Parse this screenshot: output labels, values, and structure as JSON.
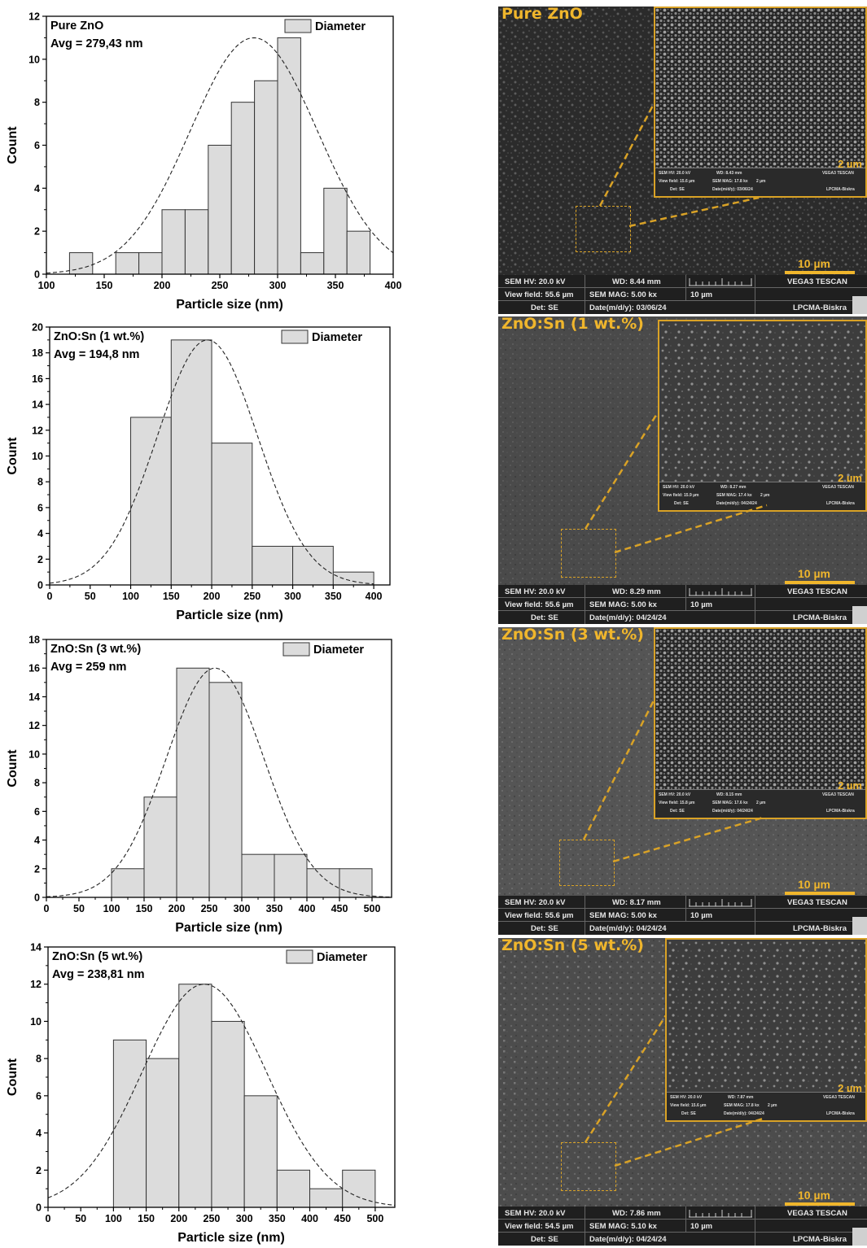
{
  "charts": [
    {
      "type": "bar",
      "sample_label": "Pure ZnO",
      "avg_label": "Avg = 279,43 nm",
      "legend_label": "Diameter",
      "xlabel": "Particle size (nm)",
      "ylabel": "Count",
      "xlim": [
        100,
        400
      ],
      "ylim": [
        0,
        12
      ],
      "xticks": [
        100,
        150,
        200,
        250,
        300,
        350,
        400
      ],
      "yticks": [
        0,
        2,
        4,
        6,
        8,
        10,
        12
      ],
      "bin_edges": [
        120,
        140,
        160,
        180,
        200,
        220,
        240,
        260,
        280,
        300,
        320,
        340,
        360,
        380
      ],
      "values": [
        1,
        0,
        1,
        1,
        3,
        3,
        6,
        8,
        9,
        11,
        1,
        4,
        2
      ],
      "fit": {
        "mean": 279.43,
        "sd": 55,
        "peak": 11,
        "from": 100,
        "to": 400
      }
    },
    {
      "type": "bar",
      "sample_label": "ZnO:Sn (1 wt.%)",
      "avg_label": "Avg = 194,8 nm",
      "legend_label": "Diameter",
      "xlabel": "Particle size (nm)",
      "ylabel": "Count",
      "xlim": [
        0,
        420
      ],
      "ylim": [
        0,
        20
      ],
      "xticks": [
        0,
        50,
        100,
        150,
        200,
        250,
        300,
        350,
        400
      ],
      "yticks": [
        0,
        2,
        4,
        6,
        8,
        10,
        12,
        14,
        16,
        18,
        20
      ],
      "bin_edges": [
        100,
        150,
        200,
        250,
        300,
        350,
        400
      ],
      "values": [
        13,
        19,
        11,
        3,
        3,
        1
      ],
      "fit": {
        "mean": 194.8,
        "sd": 62,
        "peak": 19,
        "from": 0,
        "to": 400
      }
    },
    {
      "type": "bar",
      "sample_label": "ZnO:Sn (3 wt.%)",
      "avg_label": "Avg = 259 nm",
      "legend_label": "Diameter",
      "xlabel": "Particle size (nm)",
      "ylabel": "Count",
      "xlim": [
        0,
        530
      ],
      "ylim": [
        0,
        18
      ],
      "xticks": [
        0,
        50,
        100,
        150,
        200,
        250,
        300,
        350,
        400,
        450,
        500
      ],
      "yticks": [
        0,
        2,
        4,
        6,
        8,
        10,
        12,
        14,
        16,
        18
      ],
      "bin_edges": [
        100,
        150,
        200,
        250,
        300,
        350,
        400,
        450,
        500
      ],
      "values": [
        2,
        7,
        16,
        15,
        3,
        3,
        2,
        2
      ],
      "fit": {
        "mean": 259,
        "sd": 75,
        "peak": 16,
        "from": 0,
        "to": 530
      }
    },
    {
      "type": "bar",
      "sample_label": "ZnO:Sn (5 wt.%)",
      "avg_label": "Avg = 238,81 nm",
      "legend_label": "Diameter",
      "xlabel": "Particle size (nm)",
      "ylabel": "Count",
      "xlim": [
        0,
        530
      ],
      "ylim": [
        0,
        14
      ],
      "xticks": [
        0,
        50,
        100,
        150,
        200,
        250,
        300,
        350,
        400,
        450,
        500
      ],
      "yticks": [
        0,
        2,
        4,
        6,
        8,
        10,
        12,
        14
      ],
      "bin_edges": [
        100,
        150,
        200,
        250,
        300,
        350,
        400,
        450,
        500
      ],
      "values": [
        9,
        8,
        12,
        10,
        6,
        2,
        1,
        2
      ],
      "fit": {
        "mean": 238.81,
        "sd": 95,
        "peak": 12,
        "from": 0,
        "to": 530
      }
    }
  ],
  "sem_panels": [
    {
      "title": "Pure ZnO",
      "scale_label": "10 µm",
      "inset_scale_label": "2 µm",
      "hv": "SEM HV: 20.0 kV",
      "wd": "WD: 8.44 mm",
      "vendor": "VEGA3 TESCAN",
      "view_field": "View field: 55.6 µm",
      "mag": "SEM MAG: 5.00 kx",
      "bar_label": "10 µm",
      "det": "Det: SE",
      "date": "Date(m/d/y): 03/06/24",
      "lab": "LPCMA-Biskra",
      "inset_hv": "SEM HV: 20.0 kV",
      "inset_wd": "WD: 8.43 mm",
      "inset_vendor": "VEGA3 TESCAN",
      "inset_view": "View field: 15.6 µm",
      "inset_mag": "SEM MAG: 17.8 kx",
      "inset_bar": "2 µm",
      "inset_det": "Det: SE",
      "inset_date": "Date(m/d/y): 03/06/24",
      "inset_lab": "LPCMA-Biskra"
    },
    {
      "title": "ZnO:Sn (1 wt.%)",
      "scale_label": "10 µm",
      "inset_scale_label": "2 µm",
      "hv": "SEM HV: 20.0 kV",
      "wd": "WD: 8.29 mm",
      "vendor": "VEGA3 TESCAN",
      "view_field": "View field: 55.6 µm",
      "mag": "SEM MAG: 5.00 kx",
      "bar_label": "10 µm",
      "det": "Det: SE",
      "date": "Date(m/d/y): 04/24/24",
      "lab": "LPCMA-Biskra",
      "inset_hv": "SEM HV: 20.0 kV",
      "inset_wd": "WD: 8.27 mm",
      "inset_vendor": "VEGA3 TESCAN",
      "inset_view": "View field: 15.9 µm",
      "inset_mag": "SEM MAG: 17.4 kx",
      "inset_bar": "2 µm",
      "inset_det": "Det: SE",
      "inset_date": "Date(m/d/y): 04/24/24",
      "inset_lab": "LPCMA-Biskra"
    },
    {
      "title": "ZnO:Sn (3 wt.%)",
      "scale_label": "10 µm",
      "inset_scale_label": "2 µm",
      "hv": "SEM HV: 20.0 kV",
      "wd": "WD: 8.17 mm",
      "vendor": "VEGA3 TESCAN",
      "view_field": "View field: 55.6 µm",
      "mag": "SEM MAG: 5.00 kx",
      "bar_label": "10 µm",
      "det": "Det: SE",
      "date": "Date(m/d/y): 04/24/24",
      "lab": "LPCMA-Biskra",
      "inset_hv": "SEM HV: 20.0 kV",
      "inset_wd": "WD: 8.15 mm",
      "inset_vendor": "VEGA3 TESCAN",
      "inset_view": "View field: 15.8 µm",
      "inset_mag": "SEM MAG: 17.6 kx",
      "inset_bar": "2 µm",
      "inset_det": "Det: SE",
      "inset_date": "Date(m/d/y): 04/24/24",
      "inset_lab": "LPCMA-Biskra"
    },
    {
      "title": "ZnO:Sn (5 wt.%)",
      "scale_label": "10 µm",
      "inset_scale_label": "2 µm",
      "hv": "SEM HV: 20.0 kV",
      "wd": "WD: 7.86 mm",
      "vendor": "VEGA3 TESCAN",
      "view_field": "View field: 54.5 µm",
      "mag": "SEM MAG: 5.10 kx",
      "bar_label": "10 µm",
      "det": "Det: SE",
      "date": "Date(m/d/y): 04/24/24",
      "lab": "LPCMA-Biskra",
      "inset_hv": "SEM HV: 20.0 kV",
      "inset_wd": "WD: 7.87 mm",
      "inset_vendor": "VEGA3 TESCAN",
      "inset_view": "View field: 15.6 µm",
      "inset_mag": "SEM MAG: 17.8 kx",
      "inset_bar": "2 µm",
      "inset_det": "Det: SE",
      "inset_date": "Date(m/d/y): 04/24/24",
      "inset_lab": "LPCMA-Biskra"
    }
  ],
  "colors": {
    "bar_fill": "#dcdcdc",
    "bar_stroke": "#333333",
    "fit_line": "#222222",
    "sem_accent": "#f0b62c"
  }
}
